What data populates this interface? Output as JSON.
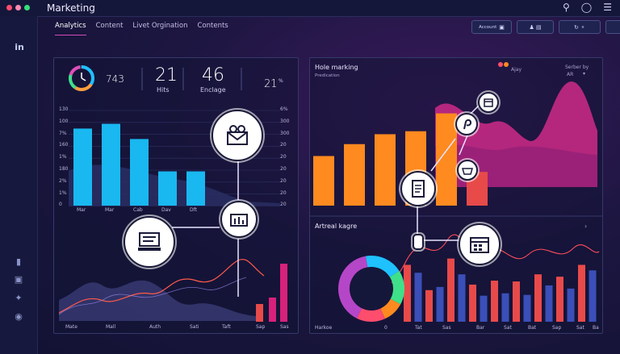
{
  "app": {
    "title": "Marketing"
  },
  "tabs": [
    {
      "label": "Analytics",
      "active": true
    },
    {
      "label": "Content",
      "active": false
    },
    {
      "label": "Livet Orgination",
      "active": false
    },
    {
      "label": "Contents",
      "active": false
    }
  ],
  "toolbar": {
    "account_label": "Account"
  },
  "left_panel": {
    "stats": [
      {
        "value": "743",
        "label": ""
      },
      {
        "value": "21",
        "label": "Hits"
      },
      {
        "value": "46",
        "label": "Enclage"
      },
      {
        "value": "21",
        "label": "%"
      }
    ],
    "y_ticks_left": [
      "130",
      "100",
      "7%",
      "160",
      "1%",
      "180",
      "2%",
      "1%",
      "0"
    ],
    "y_ticks_right": [
      "6%",
      "300",
      "300",
      "20",
      "20",
      "20",
      "20",
      "20",
      "20"
    ],
    "x_ticks_top": [
      "Mar",
      "Mar",
      "Cab",
      "Dav",
      "Dft"
    ],
    "x_ticks_bottom": [
      "Mate",
      "Mall",
      "Auth",
      "Sati",
      "Taft",
      "Sap",
      "Sas"
    ]
  },
  "right_panel": {
    "title": "Hole marking",
    "subtitle": "Predication",
    "legend_label": "Ajay",
    "sort_label": "Serber by",
    "sort_value": "AR",
    "section_title": "Artreal kagre",
    "x_ticks_bottom": [
      "Harkoe",
      "0",
      "Tat",
      "Sas",
      "Bar",
      "Sat",
      "Bat",
      "Sap",
      "Sat",
      "Ba"
    ]
  },
  "chart_data": [
    {
      "type": "bar",
      "categories": [
        "Mar",
        "Mar",
        "Cab",
        "Dav",
        "Dft"
      ],
      "values": [
        81,
        86,
        70,
        36,
        36
      ],
      "ylim": [
        0,
        100
      ]
    },
    {
      "type": "bar",
      "categories": [
        "",
        "",
        "",
        "",
        "",
        ""
      ],
      "values": [
        50,
        62,
        72,
        75,
        93,
        34
      ],
      "ylim": [
        0,
        100
      ]
    },
    {
      "type": "bar",
      "series": [
        {
          "name": "",
          "values": [
            72,
            62,
            40,
            44,
            80,
            60,
            47,
            33,
            52,
            36,
            51,
            34,
            60,
            46,
            57,
            42,
            72,
            65
          ]
        }
      ],
      "ylim": [
        0,
        100
      ]
    }
  ],
  "colors": {
    "accent": "#d24bb9",
    "cyan": "#19b8f0",
    "orange": "#ff8a1f",
    "magenta": "#d7217a",
    "red": "#e84a4a",
    "blue": "#3a4fb8"
  }
}
